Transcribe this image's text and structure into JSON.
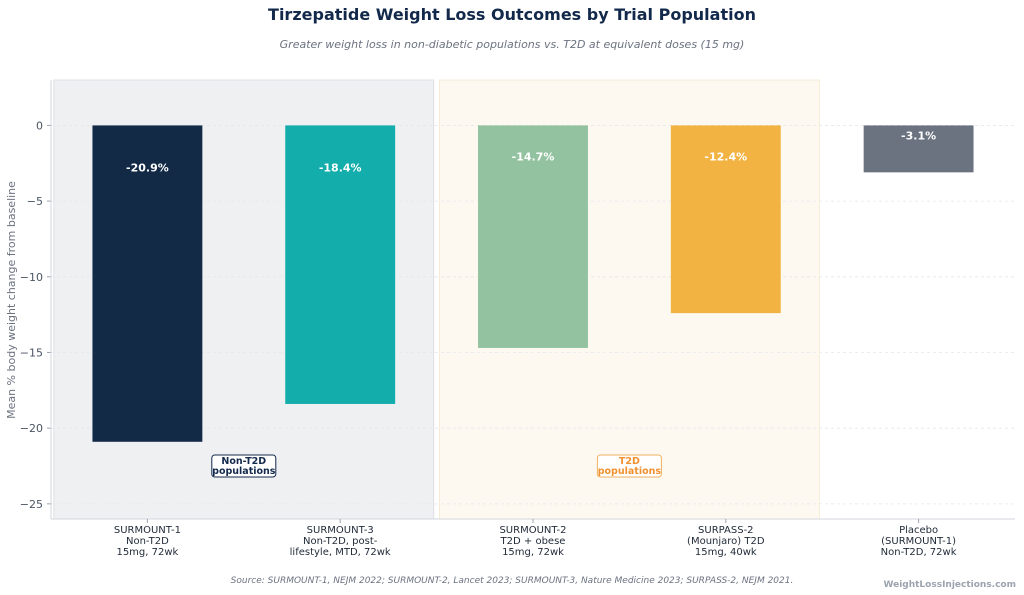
{
  "chart_data": {
    "type": "bar",
    "title": "Tirzepatide Weight Loss Outcomes by Trial Population",
    "subtitle": "Greater weight loss in non-diabetic populations vs. T2D at equivalent doses (15 mg)",
    "ylabel": "Mean % body weight change from baseline",
    "xlabel": "",
    "ylim": [
      -26,
      3
    ],
    "yticks": [
      0,
      -5,
      -10,
      -15,
      -20,
      -25
    ],
    "grid": true,
    "categories": [
      [
        "SURMOUNT-1",
        "Non-T2D",
        "15mg, 72wk"
      ],
      [
        "SURMOUNT-3",
        "Non-T2D, post-",
        "lifestyle, MTD, 72wk"
      ],
      [
        "SURMOUNT-2",
        "T2D + obese",
        "15mg, 72wk"
      ],
      [
        "SURPASS-2",
        "(Mounjaro) T2D",
        "15mg, 40wk"
      ],
      [
        "Placebo",
        "(SURMOUNT-1)",
        "Non-T2D, 72wk"
      ]
    ],
    "values": [
      -20.9,
      -18.4,
      -14.7,
      -12.4,
      -3.1
    ],
    "value_labels": [
      "-20.9%",
      "-18.4%",
      "-14.7%",
      "-12.4%",
      "-3.1%"
    ],
    "colors": [
      "#132a47",
      "#13adab",
      "#92c29f",
      "#f2b343",
      "#6b7280"
    ],
    "groups": [
      {
        "label": [
          "Non-T2D",
          "populations"
        ],
        "category_range": [
          0,
          1
        ],
        "background": "#eff0f2",
        "text_color": "#13294b",
        "border_color": "#13294b"
      },
      {
        "label": [
          "T2D",
          "populations"
        ],
        "category_range": [
          2,
          3
        ],
        "background": "#fdf9f1",
        "text_color": "#f0912e",
        "border_color": "#f0b060"
      }
    ]
  },
  "footer": {
    "source": "Source: SURMOUNT-1, NEJM 2022; SURMOUNT-2, Lancet 2023; SURMOUNT-3, Nature Medicine 2023; SURPASS-2, NEJM 2021.",
    "watermark": "WeightLossInjections.com"
  }
}
